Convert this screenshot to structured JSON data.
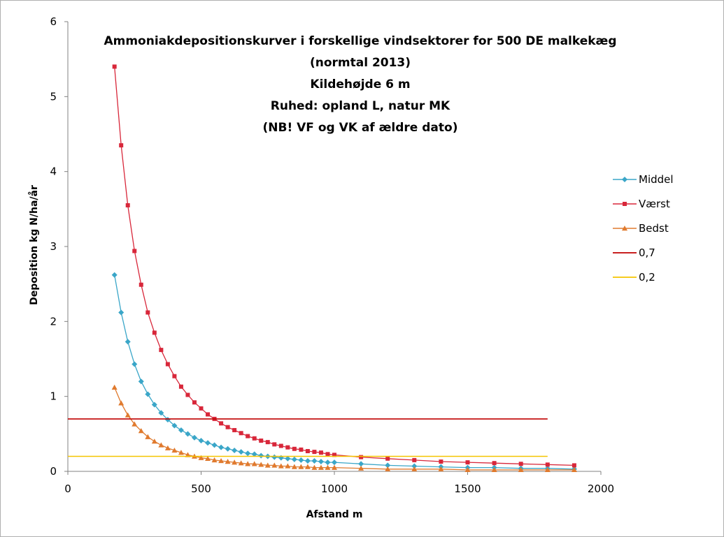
{
  "chart_data": {
    "type": "line",
    "title_lines": [
      "Ammoniakdepositionskurver i forskellige vindsektorer for 500 DE malkekæg",
      "(normtal 2013)",
      "Kildehøjde 6 m",
      "Ruhed: opland L, natur MK",
      "(NB! VF og VK af ældre dato)"
    ],
    "xlabel": "Afstand m",
    "ylabel": "Deposition kg N/ha/år",
    "xlim": [
      0,
      2000
    ],
    "ylim": [
      0,
      6
    ],
    "x_ticks": [
      "0",
      "500",
      "1000",
      "1500",
      "2000"
    ],
    "y_ticks": [
      "0",
      "1",
      "2",
      "3",
      "4",
      "5",
      "6"
    ],
    "grid": false,
    "legend_position": "right",
    "series": [
      {
        "name": "Middel",
        "color": "#3aa6c8",
        "marker": "diamond",
        "x": [
          175,
          200,
          225,
          250,
          275,
          300,
          325,
          350,
          375,
          400,
          425,
          450,
          475,
          500,
          525,
          550,
          575,
          600,
          625,
          650,
          675,
          700,
          725,
          750,
          775,
          800,
          825,
          850,
          875,
          900,
          925,
          950,
          975,
          1000,
          1100,
          1200,
          1300,
          1400,
          1500,
          1600,
          1700,
          1800,
          1900
        ],
        "y": [
          2.62,
          2.12,
          1.73,
          1.43,
          1.2,
          1.03,
          0.89,
          0.78,
          0.69,
          0.61,
          0.55,
          0.5,
          0.45,
          0.41,
          0.38,
          0.35,
          0.32,
          0.3,
          0.28,
          0.26,
          0.24,
          0.23,
          0.21,
          0.2,
          0.19,
          0.18,
          0.17,
          0.16,
          0.15,
          0.14,
          0.14,
          0.13,
          0.12,
          0.12,
          0.1,
          0.08,
          0.07,
          0.06,
          0.05,
          0.05,
          0.04,
          0.04,
          0.03
        ]
      },
      {
        "name": "Værst",
        "color": "#d8273a",
        "marker": "square",
        "x": [
          175,
          200,
          225,
          250,
          275,
          300,
          325,
          350,
          375,
          400,
          425,
          450,
          475,
          500,
          525,
          550,
          575,
          600,
          625,
          650,
          675,
          700,
          725,
          750,
          775,
          800,
          825,
          850,
          875,
          900,
          925,
          950,
          975,
          1000,
          1100,
          1200,
          1300,
          1400,
          1500,
          1600,
          1700,
          1800,
          1900
        ],
        "y": [
          5.4,
          4.35,
          3.55,
          2.94,
          2.49,
          2.12,
          1.85,
          1.62,
          1.43,
          1.27,
          1.13,
          1.02,
          0.92,
          0.84,
          0.76,
          0.7,
          0.64,
          0.59,
          0.55,
          0.51,
          0.47,
          0.44,
          0.41,
          0.39,
          0.36,
          0.34,
          0.32,
          0.3,
          0.29,
          0.27,
          0.26,
          0.25,
          0.23,
          0.22,
          0.19,
          0.17,
          0.15,
          0.13,
          0.12,
          0.11,
          0.1,
          0.09,
          0.08
        ]
      },
      {
        "name": "Bedst",
        "color": "#e07a2e",
        "marker": "triangle",
        "x": [
          175,
          200,
          225,
          250,
          275,
          300,
          325,
          350,
          375,
          400,
          425,
          450,
          475,
          500,
          525,
          550,
          575,
          600,
          625,
          650,
          675,
          700,
          725,
          750,
          775,
          800,
          825,
          850,
          875,
          900,
          925,
          950,
          975,
          1000,
          1100,
          1200,
          1300,
          1400,
          1500,
          1600,
          1700,
          1800,
          1900
        ],
        "y": [
          1.12,
          0.91,
          0.75,
          0.63,
          0.54,
          0.46,
          0.4,
          0.35,
          0.31,
          0.28,
          0.25,
          0.22,
          0.2,
          0.18,
          0.17,
          0.15,
          0.14,
          0.13,
          0.12,
          0.11,
          0.1,
          0.1,
          0.09,
          0.08,
          0.08,
          0.07,
          0.07,
          0.06,
          0.06,
          0.06,
          0.05,
          0.05,
          0.05,
          0.05,
          0.04,
          0.03,
          0.03,
          0.03,
          0.02,
          0.02,
          0.02,
          0.02,
          0.02
        ]
      },
      {
        "name": "0,7",
        "color": "#c00000",
        "marker": "none",
        "x": [
          0,
          1800
        ],
        "y": [
          0.7,
          0.7
        ]
      },
      {
        "name": "0,2",
        "color": "#f5c400",
        "marker": "none",
        "x": [
          0,
          1800
        ],
        "y": [
          0.2,
          0.2
        ]
      }
    ]
  }
}
